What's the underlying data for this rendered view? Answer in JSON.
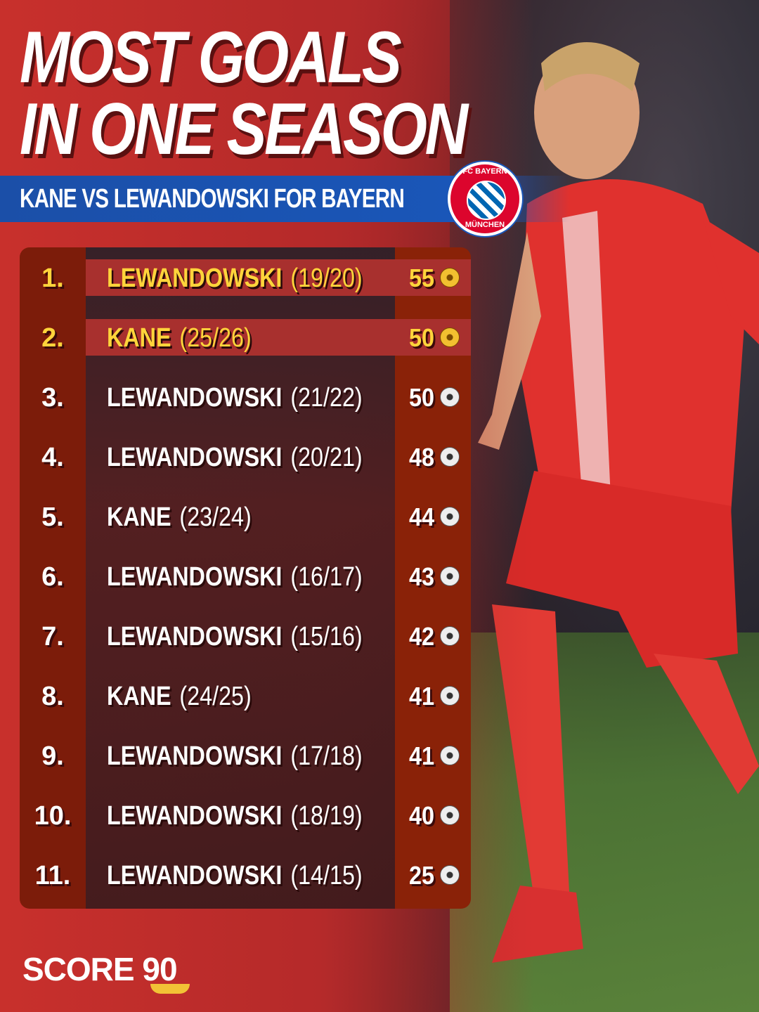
{
  "title": {
    "line1": "MOST GOALS",
    "line2": "IN ONE SEASON"
  },
  "subtitle": "KANE VS LEWANDOWSKI FOR BAYERN",
  "badge": {
    "top_text": "FC BAYERN",
    "bottom_text": "MÜNCHEN"
  },
  "colors": {
    "background_red": "#c8302c",
    "banner_blue": "#1a56b8",
    "highlight_yellow": "#ffd43b",
    "rank_column": "#7c1c0a",
    "goals_column": "#8a2208"
  },
  "chart_data": {
    "type": "table",
    "columns": [
      "rank",
      "player",
      "season",
      "goals"
    ],
    "rows": [
      {
        "rank": "1.",
        "player": "LEWANDOWSKI",
        "season": "(19/20)",
        "goals": "55",
        "highlight": true
      },
      {
        "rank": "2.",
        "player": "KANE",
        "season": "(25/26)",
        "goals": "50",
        "highlight": true
      },
      {
        "rank": "3.",
        "player": "LEWANDOWSKI",
        "season": "(21/22)",
        "goals": "50",
        "highlight": false
      },
      {
        "rank": "4.",
        "player": "LEWANDOWSKI",
        "season": "(20/21)",
        "goals": "48",
        "highlight": false
      },
      {
        "rank": "5.",
        "player": "KANE",
        "season": "(23/24)",
        "goals": "44",
        "highlight": false
      },
      {
        "rank": "6.",
        "player": "LEWANDOWSKI",
        "season": "(16/17)",
        "goals": "43",
        "highlight": false
      },
      {
        "rank": "7.",
        "player": "LEWANDOWSKI",
        "season": "(15/16)",
        "goals": "42",
        "highlight": false
      },
      {
        "rank": "8.",
        "player": "KANE",
        "season": "(24/25)",
        "goals": "41",
        "highlight": false
      },
      {
        "rank": "9.",
        "player": "LEWANDOWSKI",
        "season": "(17/18)",
        "goals": "41",
        "highlight": false
      },
      {
        "rank": "10.",
        "player": "LEWANDOWSKI",
        "season": "(18/19)",
        "goals": "40",
        "highlight": false
      },
      {
        "rank": "11.",
        "player": "LEWANDOWSKI",
        "season": "(14/15)",
        "goals": "25",
        "highlight": false
      }
    ]
  },
  "brand": {
    "name": "SCORE",
    "number": "90"
  },
  "icons": {
    "goal": "football-icon",
    "club": "fc-bayern-badge"
  }
}
